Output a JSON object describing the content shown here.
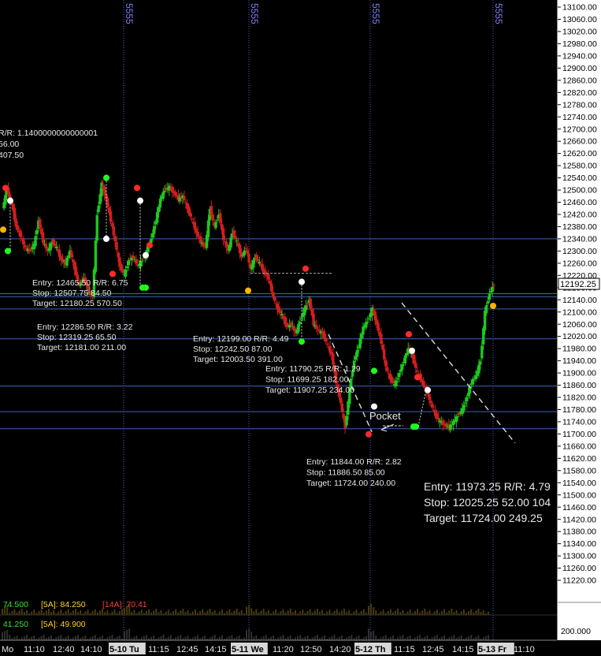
{
  "chart_data": {
    "type": "candlestick",
    "y_axis": {
      "ylim": [
        11190,
        13120
      ],
      "ticks": [
        "13100.00",
        "13060.00",
        "13020.00",
        "12980.00",
        "12940.00",
        "12900.00",
        "12860.00",
        "12820.00",
        "12780.00",
        "12740.00",
        "12700.00",
        "12660.00",
        "12620.00",
        "12580.00",
        "12540.00",
        "12500.00",
        "12460.00",
        "12420.00",
        "12380.00",
        "12340.00",
        "12300.00",
        "12260.00",
        "12220.00",
        "12180.00",
        "12140.00",
        "12100.00",
        "12060.00",
        "12020.00",
        "11980.00",
        "11940.00",
        "11900.00",
        "11860.00",
        "11820.00",
        "11780.00",
        "11740.00",
        "11700.00",
        "11660.00",
        "11620.00",
        "11580.00",
        "11540.00",
        "11500.00",
        "11460.00",
        "11420.00",
        "11380.00",
        "11340.00",
        "11300.00",
        "11260.00",
        "11220.00"
      ],
      "current_price": "12192.25",
      "indicator_tick": "200.000"
    },
    "x_axis": {
      "labels": [
        "Mo",
        "11:10",
        "12:40",
        "14:10",
        "5-10 Tu",
        "11:15",
        "12:45",
        "14:15",
        "5-11 We",
        "11:20",
        "12:50",
        "14:20",
        "5-12 Th",
        "11:15",
        "12:45",
        "14:15",
        "5-13 Fr",
        "11:10"
      ],
      "highlighted": [
        "5-10 Tu",
        "5-11 We",
        "5-12 Th",
        "5-13 Fr"
      ]
    },
    "session_markers": [
      "5555",
      "5555",
      "5555",
      "5555"
    ],
    "horizontal_levels": [
      12340,
      12160,
      12150,
      12110,
      12012,
      11857,
      11773,
      11717
    ],
    "trendlines": [
      {
        "from": [
          12130,
          0
        ],
        "to": [
          11670,
          1
        ],
        "style": "dashed"
      },
      {
        "from": [
          12027,
          0
        ],
        "to": [
          11707,
          1
        ],
        "style": "dashed"
      }
    ],
    "price_path": [
      12440,
      12500,
      12460,
      12380,
      12350,
      12310,
      12300,
      12320,
      12400,
      12330,
      12300,
      12330,
      12310,
      12270,
      12260,
      12300,
      12240,
      12190,
      12210,
      12170,
      12150,
      12420,
      12520,
      12470,
      12400,
      12330,
      12250,
      12220,
      12270,
      12280,
      12250,
      12270,
      12300,
      12340,
      12400,
      12470,
      12500,
      12510,
      12490,
      12470,
      12480,
      12440,
      12400,
      12360,
      12330,
      12310,
      12440,
      12380,
      12420,
      12340,
      12300,
      12360,
      12330,
      12280,
      12310,
      12240,
      12280,
      12260,
      12230,
      12210,
      12150,
      12110,
      12090,
      12050,
      12060,
      12030,
      12070,
      12110,
      12140,
      12060,
      12040,
      12030,
      11990,
      11960,
      11870,
      11800,
      11720,
      11850,
      11940,
      11990,
      12050,
      12070,
      12110,
      12060,
      12000,
      11920,
      11880,
      11860,
      11900,
      11940,
      11980,
      11950,
      11900,
      11870,
      11840,
      11800,
      11760,
      11740,
      11730,
      11720,
      11740,
      11760,
      11780,
      11820,
      11870,
      11890,
      11940,
      12100,
      12160,
      12190
    ],
    "annotations": {
      "top_partial": [
        "R/R: 1.1400000000000001",
        "56.00",
        "407.50"
      ],
      "block1": [
        "Entry: 12465.50  R/R: 6.75",
        "Stop: 12507.75  84.50",
        "Target: 12180.25  570.50"
      ],
      "block2": [
        "Entry: 12286.50  R/R: 3.22",
        "Stop: 12319.25  65.50",
        "Target: 12181.00  211.00"
      ],
      "block3": [
        "Entry: 12199.00  R/R: 4.49",
        "Stop: 12242.50  87.00",
        "Target: 12003.50  391.00"
      ],
      "block4": [
        "Entry: 11790.25  R/R: 1.29",
        "Stop: 11699.25  182.00",
        "Target: 11907.25  234.00"
      ],
      "block5": [
        "Entry: 11844.00  R/R: 2.82",
        "Stop: 11886.50  85.00",
        "Target: 11724.00  240.00"
      ],
      "block6": [
        "Entry: 11973.25  R/R: 4.79",
        "Stop: 12025.25  52.00  104",
        "Target: 11724.00  249.25"
      ],
      "pocket_label": "Pocket"
    },
    "indicators": {
      "row1": [
        {
          "text": ": 74.500",
          "color": "#32e632"
        },
        {
          "text": "[5A]: 84.250",
          "color": "#ffd21e"
        },
        {
          "text": "[14A]: 70.41",
          "color": "#ff3c3c"
        }
      ],
      "row2": [
        {
          "text": ": 41.250",
          "color": "#32e632"
        },
        {
          "text": "[5A]: 49.900",
          "color": "#ffd21e"
        }
      ]
    },
    "colors": {
      "background": "#000000",
      "up": "#1ec81e",
      "down": "#d21e1e",
      "level_line": "#3c64b4",
      "session_line": "#5a5adc",
      "axis_bg": "#ffffff"
    }
  }
}
